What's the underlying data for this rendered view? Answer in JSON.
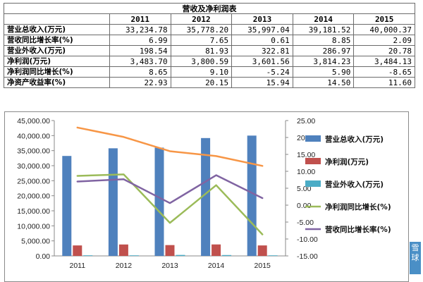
{
  "table": {
    "title": "营收及净利润表",
    "years": [
      "2011",
      "2012",
      "2013",
      "2014",
      "2015"
    ],
    "rows": [
      {
        "label": "营业总收入(万元)",
        "values": [
          "33,234.78",
          "35,778.20",
          "35,997.04",
          "39,181.52",
          "40,000.37"
        ]
      },
      {
        "label": "营收同比增长率(%)",
        "values": [
          "6.99",
          "7.65",
          "0.61",
          "8.85",
          "2.09"
        ]
      },
      {
        "label": "营业外收入(万元)",
        "values": [
          "198.54",
          "81.93",
          "322.81",
          "286.97",
          "20.78"
        ]
      },
      {
        "label": "净利润(万元)",
        "values": [
          "3,483.70",
          "3,800.59",
          "3,601.56",
          "3,814.23",
          "3,484.13"
        ]
      },
      {
        "label": "净利润同比增长(%)",
        "values": [
          "8.65",
          "9.10",
          "-5.24",
          "5.90",
          "-8.65"
        ]
      },
      {
        "label": "净资产收益率(%)",
        "values": [
          "22.93",
          "20.15",
          "15.94",
          "14.50",
          "11.60"
        ]
      }
    ]
  },
  "chart_data": {
    "type": "bar",
    "categories": [
      "2011",
      "2012",
      "2013",
      "2014",
      "2015"
    ],
    "left_axis": {
      "min": 0,
      "max": 45000,
      "step": 5000,
      "ticks": [
        "0.00",
        "5,000.00",
        "10,000.00",
        "15,000.00",
        "20,000.00",
        "25,000.00",
        "30,000.00",
        "35,000.00",
        "40,000.00",
        "45,000.00"
      ]
    },
    "right_axis": {
      "min": -15,
      "max": 25,
      "step": 5,
      "ticks": [
        "-15.00",
        "-10.00",
        "-5.00",
        "0.00",
        "5.00",
        "10.00",
        "15.00",
        "20.00",
        "25.00"
      ]
    },
    "grid": false,
    "legend_position": "right",
    "series": [
      {
        "name": "营业总收入(万元)",
        "kind": "bar",
        "axis": "left",
        "color": "#4f81bd",
        "values": [
          33234.78,
          35778.2,
          35997.04,
          39181.52,
          40000.37
        ]
      },
      {
        "name": "净利润(万元)",
        "kind": "bar",
        "axis": "left",
        "color": "#c0504d",
        "values": [
          3483.7,
          3800.59,
          3601.56,
          3814.23,
          3484.13
        ]
      },
      {
        "name": "营业外收入(万元)",
        "kind": "bar",
        "axis": "left",
        "color": "#4bacc6",
        "values": [
          198.54,
          81.93,
          322.81,
          286.97,
          20.78
        ]
      },
      {
        "name": "净利润同比增长(%)",
        "kind": "line",
        "axis": "right",
        "color": "#9bbb59",
        "values": [
          8.65,
          9.1,
          -5.24,
          5.9,
          -8.65
        ]
      },
      {
        "name": "营收同比增长率(%)",
        "kind": "line",
        "axis": "right",
        "color": "#8064a2",
        "values": [
          6.99,
          7.65,
          0.61,
          8.85,
          2.09
        ]
      },
      {
        "name": "",
        "kind": "line",
        "axis": "right",
        "color": "#f79646",
        "values": [
          22.93,
          20.15,
          15.94,
          14.5,
          11.6
        ]
      }
    ]
  },
  "watermark": "雪球"
}
